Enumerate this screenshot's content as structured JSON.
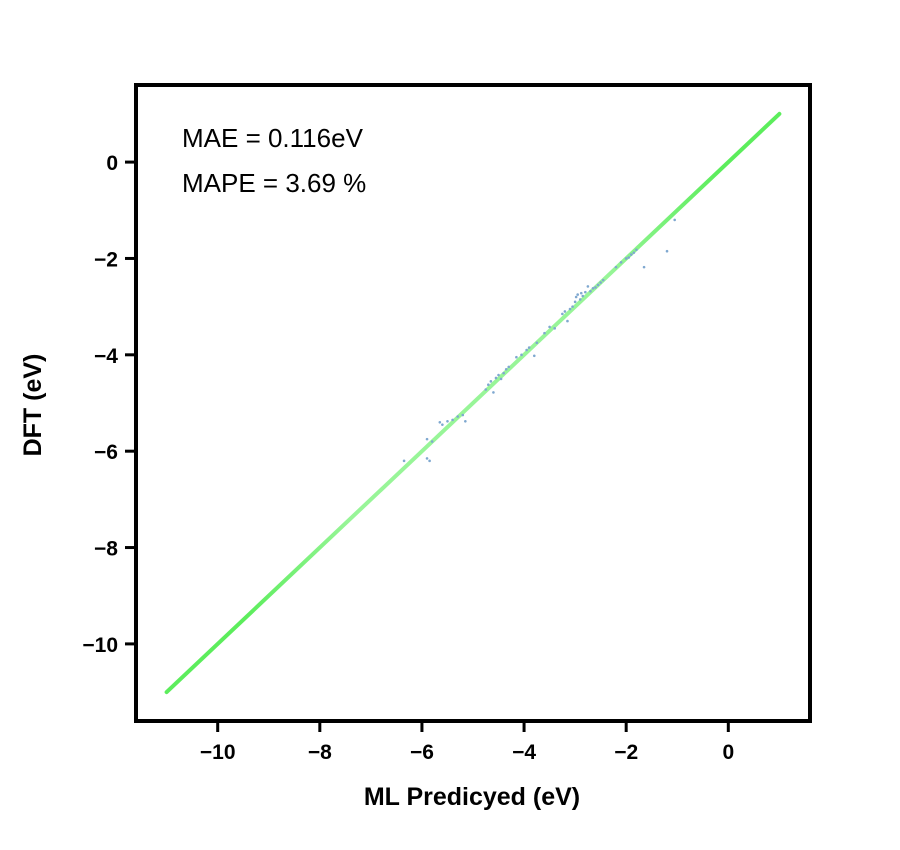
{
  "chart_data": {
    "type": "scatter",
    "title": "",
    "xlabel": "ML Predicyed (eV)",
    "ylabel": "DFT (eV)",
    "xlim": [
      -11.6,
      1.6
    ],
    "ylim": [
      -11.6,
      1.6
    ],
    "x_ticks": [
      -10,
      -8,
      -6,
      -4,
      -2,
      0
    ],
    "y_ticks": [
      -10,
      -8,
      -6,
      -4,
      -2,
      0
    ],
    "x_tick_labels": [
      "−10",
      "−8",
      "−6",
      "−4",
      "−2",
      "0"
    ],
    "y_tick_labels": [
      "−10",
      "−8",
      "−6",
      "−4",
      "−2",
      "0"
    ],
    "grid": false,
    "annotations": [
      "MAE = 0.116eV",
      "MAPE = 3.69 %"
    ],
    "reference_line": {
      "x": [
        -11,
        1
      ],
      "y": [
        -11,
        1
      ],
      "color": "#5ced5c",
      "center_color": "#98f598"
    },
    "point_color": "#7fa8d0",
    "series": [
      {
        "points": [
          [
            -6.35,
            -6.2
          ],
          [
            -5.9,
            -6.15
          ],
          [
            -5.85,
            -6.2
          ],
          [
            -5.9,
            -5.75
          ],
          [
            -5.8,
            -5.8
          ],
          [
            -5.65,
            -5.4
          ],
          [
            -5.5,
            -5.38
          ],
          [
            -5.4,
            -5.35
          ],
          [
            -5.3,
            -5.28
          ],
          [
            -5.2,
            -5.25
          ],
          [
            -5.15,
            -5.38
          ],
          [
            -5.6,
            -5.45
          ],
          [
            -4.75,
            -4.72
          ],
          [
            -4.7,
            -4.62
          ],
          [
            -4.65,
            -4.55
          ],
          [
            -4.6,
            -4.78
          ],
          [
            -4.55,
            -4.48
          ],
          [
            -4.5,
            -4.42
          ],
          [
            -4.45,
            -4.5
          ],
          [
            -4.4,
            -4.38
          ],
          [
            -4.35,
            -4.3
          ],
          [
            -4.3,
            -4.25
          ],
          [
            -4.15,
            -4.05
          ],
          [
            -4.05,
            -4.0
          ],
          [
            -3.95,
            -3.9
          ],
          [
            -3.9,
            -3.85
          ],
          [
            -3.8,
            -4.02
          ],
          [
            -3.75,
            -3.75
          ],
          [
            -3.6,
            -3.55
          ],
          [
            -3.5,
            -3.42
          ],
          [
            -3.4,
            -3.45
          ],
          [
            -3.25,
            -3.15
          ],
          [
            -3.2,
            -3.1
          ],
          [
            -3.15,
            -3.3
          ],
          [
            -3.1,
            -3.05
          ],
          [
            -3.05,
            -3.0
          ],
          [
            -3.0,
            -2.9
          ],
          [
            -2.98,
            -2.8
          ],
          [
            -2.95,
            -2.75
          ],
          [
            -2.9,
            -2.85
          ],
          [
            -2.88,
            -2.72
          ],
          [
            -2.85,
            -2.78
          ],
          [
            -2.8,
            -2.7
          ],
          [
            -2.75,
            -2.58
          ],
          [
            -2.7,
            -2.68
          ],
          [
            -2.65,
            -2.62
          ],
          [
            -2.6,
            -2.6
          ],
          [
            -2.55,
            -2.55
          ],
          [
            -2.5,
            -2.5
          ],
          [
            -2.45,
            -2.45
          ],
          [
            -2.2,
            -2.18
          ],
          [
            -2.1,
            -2.08
          ],
          [
            -2.0,
            -2.0
          ],
          [
            -1.95,
            -1.98
          ],
          [
            -1.9,
            -1.92
          ],
          [
            -1.85,
            -1.88
          ],
          [
            -1.8,
            -1.82
          ],
          [
            -1.65,
            -2.18
          ],
          [
            -1.2,
            -1.85
          ],
          [
            -1.05,
            -1.2
          ]
        ]
      }
    ]
  }
}
